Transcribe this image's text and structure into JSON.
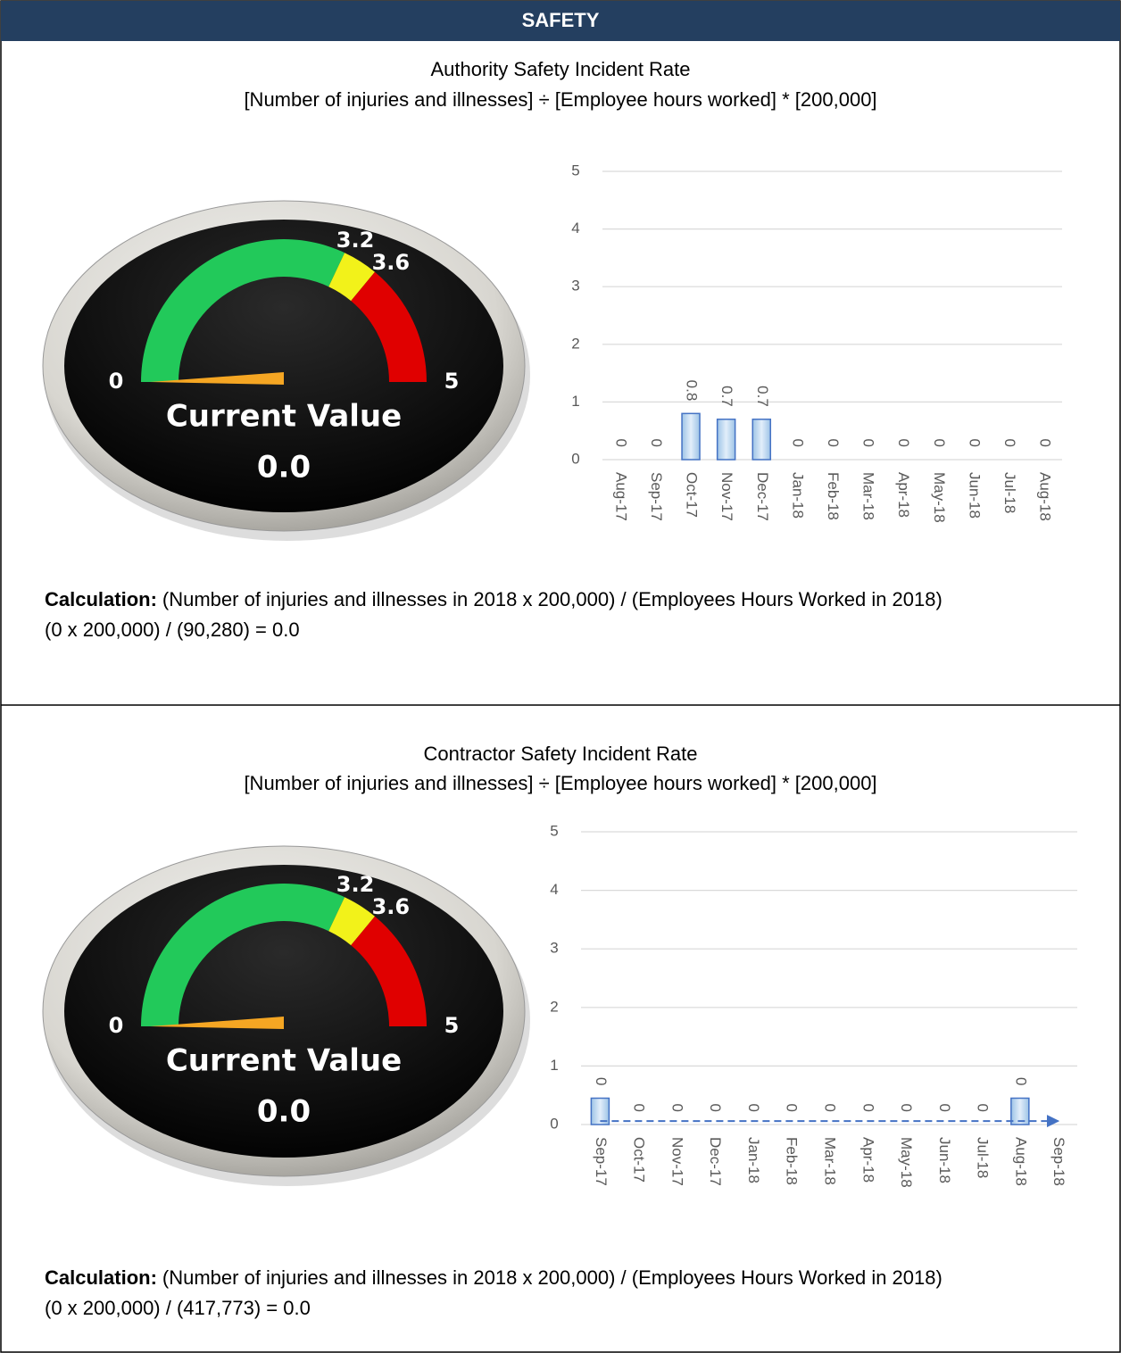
{
  "header": {
    "title": "SAFETY"
  },
  "sections": [
    {
      "title": "Authority Safety Incident Rate",
      "formula": "[Number of injuries and illnesses] ÷ [Employee hours worked] * [200,000]",
      "calculation": {
        "label": "Calculation:",
        "text": "(Number of injuries and illnesses in 2018   x  200,000)  / (Employees Hours Worked in 2018)",
        "result": "(0 x 200,000)  / (90,280) = 0.0"
      }
    },
    {
      "title": "Contractor Safety Incident Rate",
      "formula": "[Number of injuries and illnesses] ÷ [Employee hours worked] * [200,000]",
      "calculation": {
        "label": "Calculation:",
        "text": "(Number of injuries and illnesses in 2018   x  200,000)  / (Employees Hours Worked in 2018)",
        "result": "(0 x 200,000)  / (417,773) = 0.0"
      }
    }
  ],
  "chart_data": [
    {
      "type": "gauge",
      "range": [
        0,
        5
      ],
      "ticks": [
        0,
        3.2,
        3.6,
        5
      ],
      "band_colors": [
        "#22c95a",
        "#f2f21a",
        "#e00000"
      ],
      "caption": "Current Value",
      "value": 0,
      "value_label": "0.0",
      "needle_color": "#f5a623"
    },
    {
      "type": "bar",
      "categories": [
        "Aug-17",
        "Sep-17",
        "Oct-17",
        "Nov-17",
        "Dec-17",
        "Jan-18",
        "Feb-18",
        "Mar-18",
        "Apr-18",
        "May-18",
        "Jun-18",
        "Jul-18",
        "Aug-18"
      ],
      "values": [
        0,
        0,
        0.8,
        0.7,
        0.7,
        0,
        0,
        0,
        0,
        0,
        0,
        0,
        0
      ],
      "color": "#c6d9f1",
      "edge_color": "#4472c4",
      "ylim": [
        0,
        5
      ],
      "yticks": [
        0,
        1,
        2,
        3,
        4,
        5
      ],
      "grid": true
    },
    {
      "type": "gauge",
      "range": [
        0,
        5
      ],
      "ticks": [
        0,
        3.2,
        3.6,
        5
      ],
      "band_colors": [
        "#22c95a",
        "#f2f21a",
        "#e00000"
      ],
      "caption": "Current Value",
      "value": 0,
      "value_label": "0.0",
      "needle_color": "#f5a623"
    },
    {
      "type": "bar",
      "categories": [
        "Sep-17",
        "Oct-17",
        "Nov-17",
        "Dec-17",
        "Jan-18",
        "Feb-18",
        "Mar-18",
        "Apr-18",
        "May-18",
        "Jun-18",
        "Jul-18",
        "Aug-18",
        "Sep-18"
      ],
      "values": [
        0.45,
        0,
        0,
        0,
        0,
        0,
        0,
        0,
        0,
        0,
        0,
        0.45,
        null
      ],
      "value_labels": [
        "0",
        "0",
        "0",
        "0",
        "0",
        "0",
        "0",
        "0",
        "0",
        "0",
        "0",
        "0",
        null
      ],
      "trendline": {
        "values": [
          0.06,
          0.06,
          0.06,
          0.06,
          0.06,
          0.06,
          0.06,
          0.06,
          0.06,
          0.06,
          0.06,
          0.06,
          0.06
        ],
        "color": "#4472c4"
      },
      "color": "#c6d9f1",
      "edge_color": "#4472c4",
      "ylim": [
        0,
        5
      ],
      "yticks": [
        0,
        1,
        2,
        3,
        4,
        5
      ],
      "grid": true
    }
  ]
}
